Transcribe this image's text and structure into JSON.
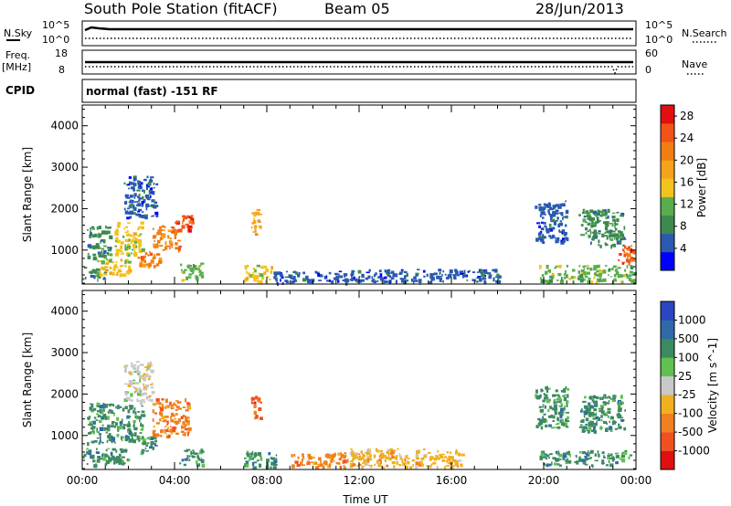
{
  "header": {
    "station": "South Pole Station (fitACF)",
    "beam": "Beam 05",
    "date": "28/Jun/2013"
  },
  "mini_panels": {
    "nsky_label": "N.Sky",
    "nsearch_label": "N.Search",
    "freq_label": "Freq.",
    "freq_unit": "[MHz]",
    "nave_label": "Nave",
    "cpid_label": "CPID",
    "nsky_ticks": [
      "10^5",
      "10^0"
    ],
    "nsearch_ticks": [
      "10^5",
      "10^0"
    ],
    "freq_ticks": [
      "18",
      "8"
    ],
    "nave_ticks": [
      "60",
      "0"
    ],
    "mode_text": "normal (fast) -151 RF"
  },
  "colors": {
    "power": [
      "#0000ff",
      "#2a5ab0",
      "#3c8a4e",
      "#59ad4c",
      "#f2c21d",
      "#f5a31a",
      "#f27d12",
      "#f25318",
      "#e01010"
    ],
    "velocity": [
      "#2a46c0",
      "#2f6aa8",
      "#3c8a60",
      "#60c050",
      "#c8c8c8",
      "#f0b020",
      "#f08020",
      "#f05020",
      "#e01010"
    ]
  },
  "chart_data": [
    {
      "type": "heatmap",
      "variable": "power",
      "xlabel": "",
      "ylabel": "Slant Range [km]",
      "x_ticks": [
        "00:00",
        "04:00",
        "08:00",
        "12:00",
        "16:00",
        "20:00",
        "00:00"
      ],
      "y_ticks": [
        1000,
        2000,
        3000,
        4000
      ],
      "xlim": [
        0,
        24
      ],
      "ylim": [
        180,
        4500
      ],
      "colorbar": {
        "label": "Power [dB]",
        "ticks": [
          4,
          8,
          12,
          16,
          20,
          24,
          28
        ],
        "range": [
          0,
          30
        ]
      },
      "regions": [
        {
          "t": [
            0.0,
            1.0
          ],
          "r": [
            300,
            600
          ],
          "v": 8
        },
        {
          "t": [
            0.6,
            2.0
          ],
          "r": [
            400,
            800
          ],
          "v": 16
        },
        {
          "t": [
            0.2,
            1.2
          ],
          "r": [
            800,
            1600
          ],
          "v": 7
        },
        {
          "t": [
            1.4,
            2.6
          ],
          "r": [
            900,
            1700
          ],
          "v": 14
        },
        {
          "t": [
            2.4,
            3.4
          ],
          "r": [
            600,
            1000
          ],
          "v": 22
        },
        {
          "t": [
            3.0,
            4.2
          ],
          "r": [
            1000,
            1600
          ],
          "v": 20
        },
        {
          "t": [
            4.0,
            4.8
          ],
          "r": [
            1500,
            1900
          ],
          "v": 24
        },
        {
          "t": [
            1.8,
            3.2
          ],
          "r": [
            1800,
            2800
          ],
          "v": 5
        },
        {
          "t": [
            4.2,
            5.2
          ],
          "r": [
            300,
            700
          ],
          "v": 12
        },
        {
          "t": [
            7.0,
            8.2
          ],
          "r": [
            250,
            650
          ],
          "v": 14
        },
        {
          "t": [
            7.3,
            7.7
          ],
          "r": [
            1400,
            2000
          ],
          "v": 18
        },
        {
          "t": [
            8.2,
            11.5
          ],
          "r": [
            220,
            500
          ],
          "v": 6
        },
        {
          "t": [
            11.5,
            18.0
          ],
          "r": [
            250,
            550
          ],
          "v": 6
        },
        {
          "t": [
            19.8,
            23.9
          ],
          "r": [
            250,
            650
          ],
          "v": 12
        },
        {
          "t": [
            19.6,
            21.0
          ],
          "r": [
            1200,
            2200
          ],
          "v": 6
        },
        {
          "t": [
            21.5,
            23.5
          ],
          "r": [
            1100,
            2000
          ],
          "v": 8
        },
        {
          "t": [
            23.2,
            23.9
          ],
          "r": [
            700,
            1200
          ],
          "v": 26
        }
      ]
    },
    {
      "type": "heatmap",
      "variable": "velocity",
      "xlabel": "Time UT",
      "ylabel": "Slant Range [km]",
      "x_ticks": [
        "00:00",
        "04:00",
        "08:00",
        "12:00",
        "16:00",
        "20:00",
        "00:00"
      ],
      "y_ticks": [
        1000,
        2000,
        3000,
        4000
      ],
      "xlim": [
        0,
        24
      ],
      "ylim": [
        180,
        4500
      ],
      "colorbar": {
        "label": "Velocity [m s^-1]",
        "ticks": [
          1000,
          500,
          100,
          25,
          -25,
          -100,
          -500,
          -1000
        ]
      },
      "regions": [
        {
          "t": [
            0.0,
            2.0
          ],
          "r": [
            300,
            700
          ],
          "v": 200
        },
        {
          "t": [
            0.2,
            1.4
          ],
          "r": [
            800,
            1800
          ],
          "v": 300
        },
        {
          "t": [
            1.4,
            2.6
          ],
          "r": [
            900,
            1800
          ],
          "v": 150
        },
        {
          "t": [
            1.8,
            3.0
          ],
          "r": [
            1800,
            2800
          ],
          "v": 0
        },
        {
          "t": [
            2.4,
            3.2
          ],
          "r": [
            600,
            1000
          ],
          "v": 400
        },
        {
          "t": [
            3.0,
            4.6
          ],
          "r": [
            1000,
            1900
          ],
          "v": -200
        },
        {
          "t": [
            4.2,
            5.2
          ],
          "r": [
            300,
            700
          ],
          "v": 150
        },
        {
          "t": [
            7.0,
            8.4
          ],
          "r": [
            250,
            650
          ],
          "v": 200
        },
        {
          "t": [
            7.3,
            7.7
          ],
          "r": [
            1400,
            2000
          ],
          "v": -600
        },
        {
          "t": [
            9.0,
            11.5
          ],
          "r": [
            250,
            600
          ],
          "v": -150
        },
        {
          "t": [
            11.5,
            16.5
          ],
          "r": [
            250,
            700
          ],
          "v": -80
        },
        {
          "t": [
            19.8,
            23.9
          ],
          "r": [
            300,
            650
          ],
          "v": 200
        },
        {
          "t": [
            19.6,
            21.0
          ],
          "r": [
            1200,
            2200
          ],
          "v": 300
        },
        {
          "t": [
            21.5,
            23.5
          ],
          "r": [
            1100,
            2000
          ],
          "v": 350
        }
      ]
    }
  ]
}
